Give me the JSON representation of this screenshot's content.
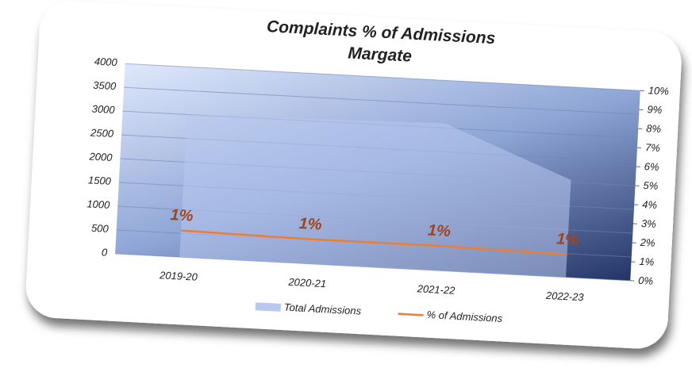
{
  "chart_data": {
    "type": "area_line",
    "title": "Complaints % of Admissions",
    "subtitle": "Margate",
    "categories": [
      "2019-20",
      "2020-21",
      "2021-22",
      "2022-23"
    ],
    "series": [
      {
        "name": "Total Admissions",
        "color": "#b8c8ee",
        "type": "area",
        "values": [
          3000,
          3050,
          3100,
          2050
        ]
      },
      {
        "name": "% of Admissions",
        "color": "#ed7d31",
        "type": "line",
        "axis": "y2",
        "values": [
          1.4,
          1.3,
          1.3,
          1.2
        ],
        "value_labels": [
          "1%",
          "1%",
          "1%",
          "1%"
        ]
      }
    ],
    "ylim": [
      0,
      4000
    ],
    "yticks": [
      0,
      500,
      1000,
      1500,
      2000,
      2500,
      3000,
      3500,
      4000
    ],
    "y2lim": [
      0,
      10
    ],
    "y2ticks": [
      {
        "value": 0,
        "label": "0%"
      },
      {
        "value": 1,
        "label": "1%"
      },
      {
        "value": 2,
        "label": "2%"
      },
      {
        "value": 3,
        "label": "3%"
      },
      {
        "value": 4,
        "label": "4%"
      },
      {
        "value": 5,
        "label": "5%"
      },
      {
        "value": 6,
        "label": "6%"
      },
      {
        "value": 7,
        "label": "7%"
      },
      {
        "value": 8,
        "label": "8%"
      },
      {
        "value": 9,
        "label": "9%"
      },
      {
        "value": 10,
        "label": "10%"
      }
    ],
    "grid": true,
    "legend": "bottom"
  }
}
